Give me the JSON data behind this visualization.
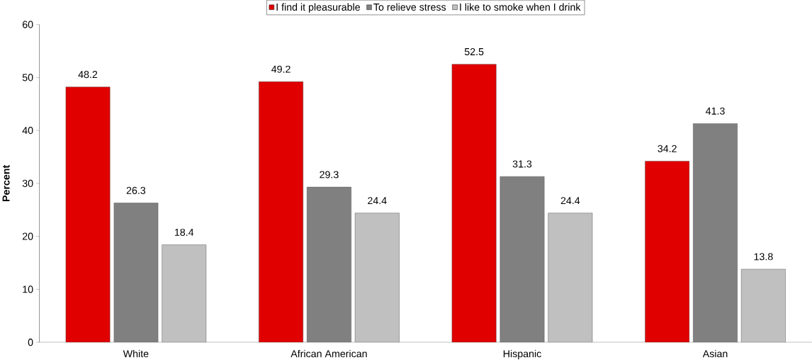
{
  "chart_data": {
    "type": "bar",
    "ylabel": "Percent",
    "categories": [
      "White",
      "African American",
      "Hispanic",
      "Asian"
    ],
    "series": [
      {
        "name": "I find it pleasurable",
        "color": "#e00000",
        "values": [
          48.2,
          49.2,
          52.5,
          34.2
        ]
      },
      {
        "name": "To relieve stress",
        "color": "#808080",
        "values": [
          26.3,
          29.3,
          31.3,
          41.3
        ]
      },
      {
        "name": "I like to smoke when I drink",
        "color": "#c0c0c0",
        "values": [
          18.4,
          24.4,
          24.4,
          13.8
        ]
      }
    ],
    "ylim": [
      0,
      60
    ],
    "yticks": [
      0,
      10,
      20,
      30,
      40,
      50,
      60
    ],
    "data_labels": true,
    "legend": "top",
    "grid": false
  }
}
